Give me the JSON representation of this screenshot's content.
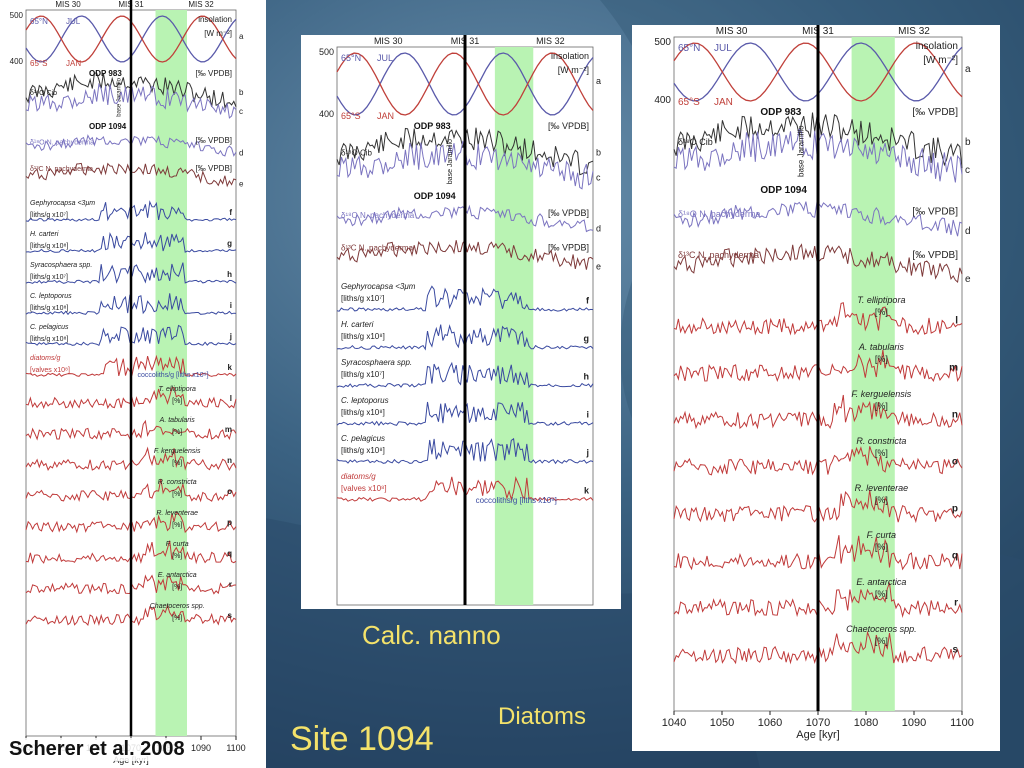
{
  "captions": {
    "calc_nanno": "Calc. nanno",
    "diatoms": "Diatoms",
    "site": "Site 1094",
    "citation": "Scherer et al. 2008"
  },
  "colors": {
    "background": "#3f6688",
    "caption": "#f4e26a",
    "nh_insolation": "#5a5aaa",
    "sh_insolation": "#c0403a",
    "green_band": "#b9f3b3",
    "odp983": "#333333",
    "purple": "#7b74c0",
    "brown": "#7e3a3a",
    "blue": "#3a4aa0",
    "red": "#c03a3a"
  },
  "figure": {
    "mis_labels": [
      "MIS 30",
      "MIS 31",
      "MIS 32"
    ],
    "insolation": {
      "nh_label": "65°N",
      "nh_month": "JUL",
      "sh_label": "65°S",
      "sh_month": "JAN",
      "title": "insolation",
      "unit": "[W m⁻²]",
      "ticks": [
        "500",
        "400"
      ]
    },
    "odp983_label": "ODP 983",
    "odp1094_label": "ODP 1094",
    "d18o_cib": "δ¹⁸O Cib",
    "d18o_pach": "δ¹⁸O N. pachyderma",
    "d13c_pach": "δ¹³C N. pachyderma",
    "vpdb": "[‰ VPDB]",
    "base_jaramillo": "base Jaramillo",
    "coccoliths": "coccoliths/g [liths x10⁹]",
    "nanno_rows": [
      {
        "label": "Gephyrocapsa <3μm",
        "unit": "[liths/g x10⁷]",
        "letter": "f"
      },
      {
        "label": "H. carteri",
        "unit": "[liths/g x10⁸]",
        "letter": "g"
      },
      {
        "label": "Syracosphaera spp.",
        "unit": "[liths/g x10⁷]",
        "letter": "h"
      },
      {
        "label": "C. leptoporus",
        "unit": "[liths/g x10⁸]",
        "letter": "i"
      },
      {
        "label": "C. pelagicus",
        "unit": "[liths/g x10⁸]",
        "letter": "j"
      },
      {
        "label": "diatoms/g",
        "unit": "[valves x10⁸]",
        "letter": "k"
      }
    ],
    "diatom_rows": [
      {
        "label": "T. elliptipora",
        "unit": "[%]",
        "letter": "l"
      },
      {
        "label": "A. tabularis",
        "unit": "[%]",
        "letter": "m"
      },
      {
        "label": "F. kerguelensis",
        "unit": "[%]",
        "letter": "n"
      },
      {
        "label": "R. constricta",
        "unit": "[%]",
        "letter": "o"
      },
      {
        "label": "R. leventerae",
        "unit": "[%]",
        "letter": "p"
      },
      {
        "label": "F. curta",
        "unit": "[%]",
        "letter": "q"
      },
      {
        "label": "E. antarctica",
        "unit": "[%]",
        "letter": "r"
      },
      {
        "label": "Chaetoceros spp.",
        "unit": "[%]",
        "letter": "s"
      }
    ],
    "top_letters": [
      "a",
      "b",
      "c",
      "d",
      "e"
    ],
    "age_axis": {
      "label": "Age [kyr]",
      "ticks": [
        "1040",
        "1050",
        "1060",
        "1070",
        "1080",
        "1090",
        "1100"
      ],
      "range": [
        1040,
        1100
      ],
      "mis31_boundary": 1070,
      "green_band": [
        1077,
        1086
      ]
    }
  }
}
